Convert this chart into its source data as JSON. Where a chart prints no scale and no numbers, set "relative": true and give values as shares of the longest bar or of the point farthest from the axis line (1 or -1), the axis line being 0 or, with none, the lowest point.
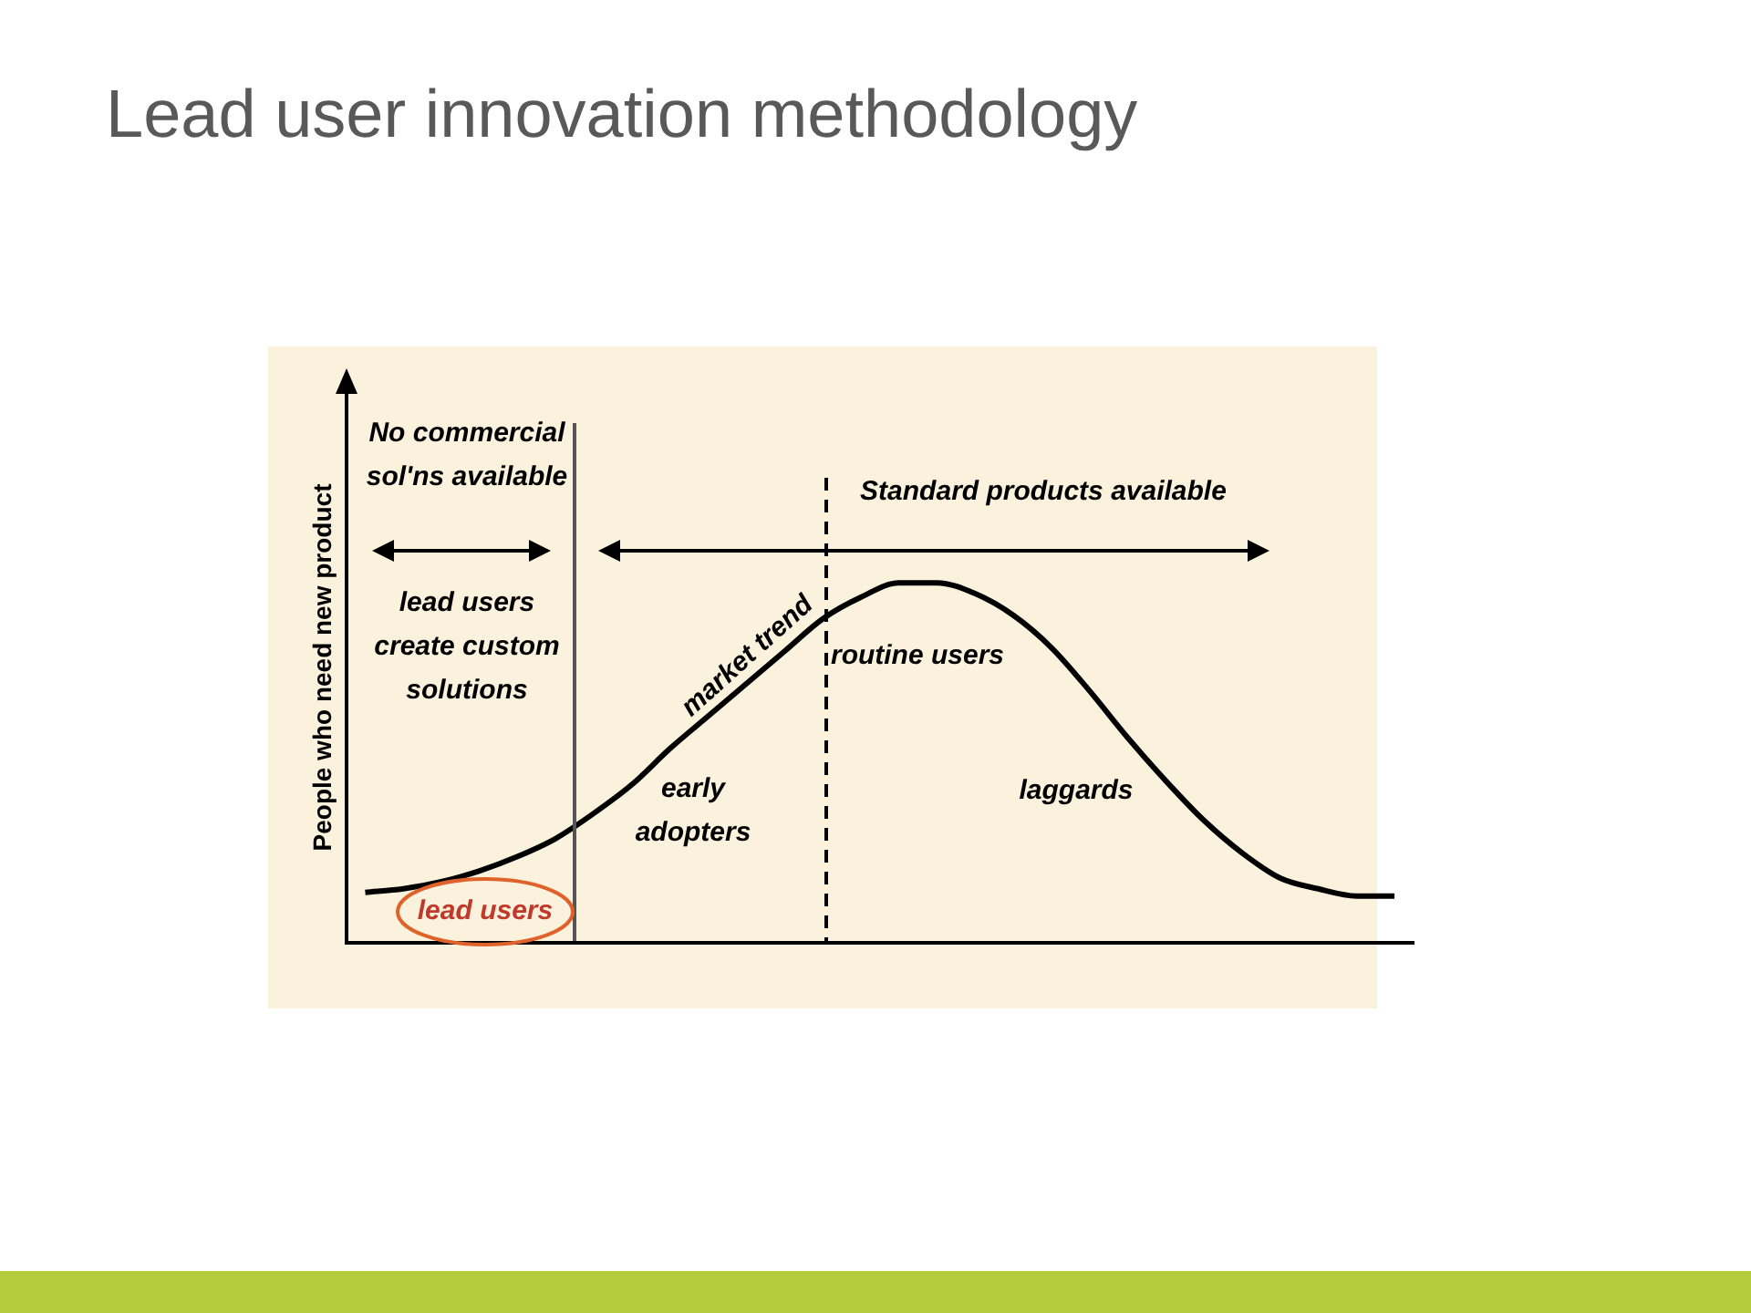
{
  "chart_data": {
    "type": "line",
    "title": "Lead user innovation methodology",
    "ylabel": "People who need new product",
    "relative": true,
    "grid": false,
    "legend": false,
    "marker": "none",
    "line_style": "solid",
    "categories": [
      null,
      null,
      null,
      null,
      null,
      null,
      null,
      null,
      null,
      null,
      null,
      null,
      null,
      null,
      null,
      null,
      null,
      null,
      null,
      null,
      null,
      null,
      null,
      null,
      null,
      null,
      null,
      null
    ],
    "series": [
      {
        "color": "#000000",
        "values": [
          0.14,
          0.15,
          0.17,
          0.2,
          0.24,
          0.29,
          0.36,
          0.44,
          0.54,
          0.63,
          0.72,
          0.81,
          0.9,
          0.96,
          1.0,
          1.0,
          0.97,
          0.91,
          0.82,
          0.7,
          0.57,
          0.45,
          0.34,
          0.25,
          0.18,
          0.15,
          0.13,
          0.13
        ]
      }
    ],
    "annotations": [
      "No commercial\nsol'ns available",
      "lead users\ncreate custom\nsolutions",
      "Standard products available",
      "market trend",
      "routine users",
      "early\nadopters",
      "laggards",
      "lead users"
    ]
  }
}
